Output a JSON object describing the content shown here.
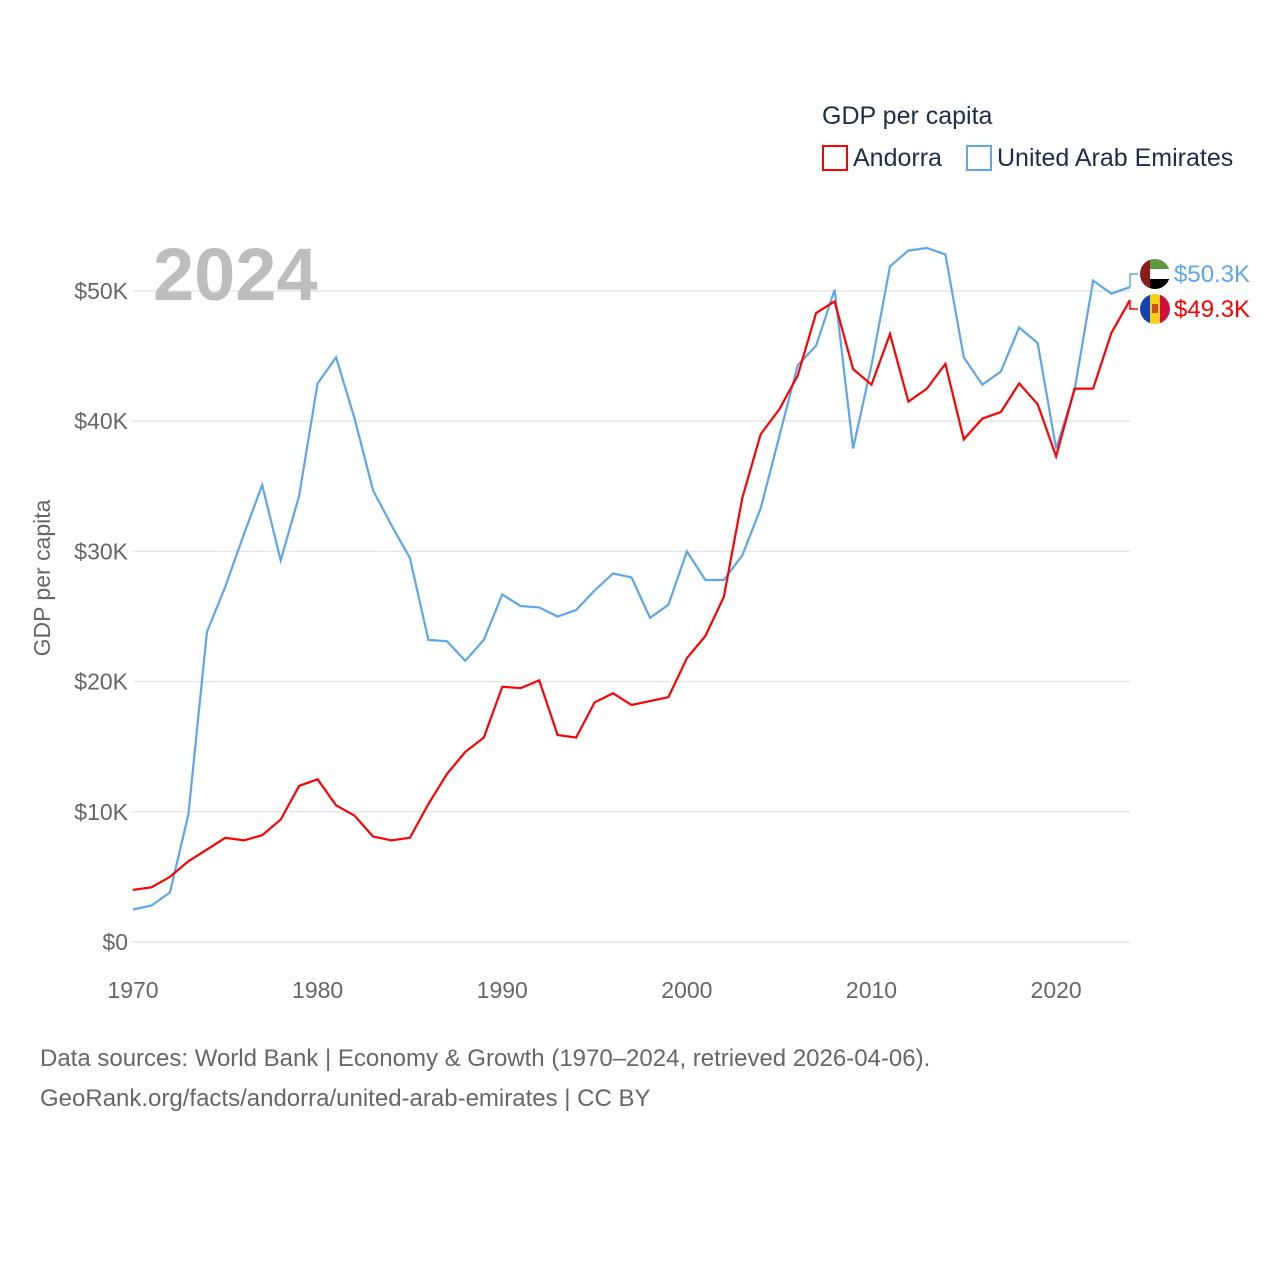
{
  "chart_data": {
    "type": "line",
    "title": "GDP per capita",
    "xlabel": "",
    "ylabel": "GDP per capita",
    "year_label": "2024",
    "xlim": [
      1970,
      2024
    ],
    "ylim": [
      0,
      50000
    ],
    "x_ticks": [
      1970,
      1980,
      1990,
      2000,
      2010,
      2020
    ],
    "x_tick_labels": [
      "1970",
      "1980",
      "1990",
      "2000",
      "2010",
      "2020"
    ],
    "y_ticks": [
      0,
      10000,
      20000,
      30000,
      40000,
      50000
    ],
    "y_tick_labels": [
      "$0",
      "$10K",
      "$20K",
      "$30K",
      "$40K",
      "$50K"
    ],
    "grid": true,
    "legend_position": "top-right",
    "x": [
      1970,
      1971,
      1972,
      1973,
      1974,
      1975,
      1976,
      1977,
      1978,
      1979,
      1980,
      1981,
      1982,
      1983,
      1984,
      1985,
      1986,
      1987,
      1988,
      1989,
      1990,
      1991,
      1992,
      1993,
      1994,
      1995,
      1996,
      1997,
      1998,
      1999,
      2000,
      2001,
      2002,
      2003,
      2004,
      2005,
      2006,
      2007,
      2008,
      2009,
      2010,
      2011,
      2012,
      2013,
      2014,
      2015,
      2016,
      2017,
      2018,
      2019,
      2020,
      2021,
      2022,
      2023,
      2024
    ],
    "series": [
      {
        "name": "Andorra",
        "color": "#ff0000",
        "end_label": "$49.3K",
        "values": [
          4.0,
          4.2,
          5.0,
          6.2,
          7.1,
          8.0,
          7.8,
          8.2,
          9.4,
          12.0,
          12.5,
          10.5,
          9.7,
          8.1,
          7.8,
          8.0,
          10.6,
          12.9,
          14.6,
          15.7,
          19.6,
          19.5,
          20.1,
          15.9,
          15.7,
          18.4,
          19.1,
          18.2,
          18.5,
          18.8,
          21.8,
          23.5,
          26.5,
          34.1,
          39.0,
          40.9,
          43.5,
          48.3,
          49.2,
          44.0,
          42.8,
          46.7,
          41.5,
          42.5,
          44.4,
          38.6,
          40.2,
          40.7,
          42.9,
          41.3,
          37.3,
          42.5,
          42.5,
          46.8,
          49.3
        ]
      },
      {
        "name": "United Arab Emirates",
        "color": "#5ea6ea",
        "end_label": "$50.3K",
        "values": [
          2.5,
          2.8,
          3.8,
          9.8,
          23.8,
          27.3,
          31.3,
          35.1,
          29.3,
          34.3,
          42.9,
          44.9,
          40.2,
          34.7,
          32.0,
          29.5,
          23.2,
          23.1,
          21.6,
          23.2,
          26.7,
          25.8,
          25.7,
          25.0,
          25.5,
          27.0,
          28.3,
          28.0,
          24.9,
          25.9,
          30.0,
          27.8,
          27.8,
          29.7,
          33.3,
          38.8,
          44.3,
          45.8,
          50.1,
          37.9,
          44.3,
          51.9,
          53.1,
          53.3,
          52.8,
          44.9,
          42.8,
          43.8,
          47.2,
          46.0,
          37.9,
          42.4,
          50.8,
          49.8,
          50.3
        ]
      }
    ],
    "value_units": "thousand USD"
  },
  "footer": {
    "line1": "Data sources: World Bank | Economy & Growth (1970–2024, retrieved 2026-04-06).",
    "line2": "GeoRank.org/facts/andorra/united-arab-emirates | CC BY"
  }
}
